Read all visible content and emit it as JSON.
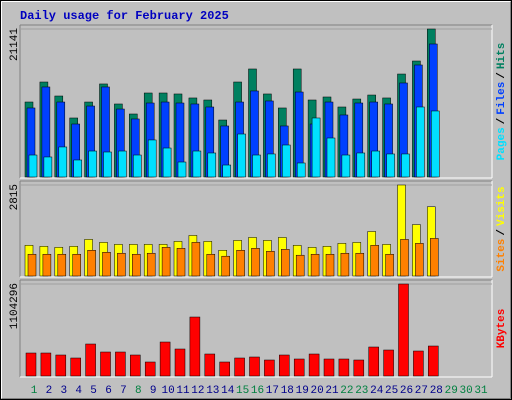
{
  "title": "Daily usage for February 2025",
  "categories": [
    "1",
    "2",
    "3",
    "4",
    "5",
    "6",
    "7",
    "8",
    "9",
    "10",
    "11",
    "12",
    "13",
    "14",
    "15",
    "16",
    "17",
    "18",
    "19",
    "20",
    "21",
    "22",
    "23",
    "24",
    "25",
    "26",
    "27",
    "28",
    "29",
    "30",
    "31"
  ],
  "category_colors": [
    "#008040",
    "#00008b",
    "#00008b",
    "#00008b",
    "#00008b",
    "#00008b",
    "#00008b",
    "#008040",
    "#00008b",
    "#00008b",
    "#00008b",
    "#00008b",
    "#00008b",
    "#00008b",
    "#008040",
    "#008040",
    "#00008b",
    "#00008b",
    "#00008b",
    "#00008b",
    "#00008b",
    "#008040",
    "#008040",
    "#00008b",
    "#00008b",
    "#00008b",
    "#00008b",
    "#00008b",
    "#008040",
    "#008040",
    "#008040"
  ],
  "legend_separator": "/",
  "chart_data": [
    {
      "type": "bar",
      "ylim": [
        0,
        21141
      ],
      "yticks": [
        21141
      ],
      "series": [
        {
          "name": "Hits",
          "color": "#008060",
          "values": [
            10713,
            13570,
            11570,
            8430,
            10710,
            13290,
            10430,
            9000,
            12000,
            12000,
            11860,
            11290,
            11000,
            8140,
            13570,
            15430,
            11860,
            9860,
            15430,
            11000,
            11430,
            10000,
            11140,
            11710,
            11290,
            14710,
            16570,
            21141,
            null,
            null,
            null
          ]
        },
        {
          "name": "Files",
          "color": "#0040ff",
          "values": [
            9860,
            12860,
            10710,
            7570,
            10140,
            12860,
            9710,
            8290,
            10570,
            10710,
            10570,
            10430,
            10000,
            7290,
            10710,
            12290,
            10860,
            7290,
            12140,
            7570,
            10710,
            8860,
            10570,
            10710,
            10430,
            13430,
            16000,
            19000,
            null,
            null,
            null
          ]
        },
        {
          "name": "Pages",
          "color": "#00e0ff",
          "values": [
            3140,
            2860,
            4290,
            2430,
            3710,
            3570,
            3710,
            3140,
            5290,
            4140,
            2140,
            3710,
            3430,
            1710,
            6140,
            3140,
            3290,
            4570,
            2000,
            8430,
            5570,
            3140,
            3430,
            3710,
            3290,
            3290,
            10000,
            9430,
            null,
            null,
            null
          ]
        }
      ]
    },
    {
      "type": "bar",
      "ylim": [
        0,
        2815
      ],
      "yticks": [
        2815
      ],
      "series": [
        {
          "name": "Visits",
          "color": "#ffff00",
          "values": [
            949,
            918,
            887,
            918,
            1132,
            1040,
            979,
            979,
            979,
            979,
            1071,
            1255,
            1071,
            796,
            1102,
            1193,
            1102,
            1193,
            949,
            887,
            918,
            1010,
            1040,
            1377,
            979,
            2815,
            1591,
            2142,
            null,
            null,
            null
          ]
        },
        {
          "name": "Sites",
          "color": "#ff8000",
          "values": [
            673,
            673,
            673,
            673,
            796,
            734,
            704,
            673,
            704,
            887,
            857,
            1040,
            673,
            612,
            796,
            857,
            765,
            826,
            643,
            673,
            673,
            704,
            704,
            949,
            673,
            1132,
            1010,
            1163,
            null,
            null,
            null
          ]
        }
      ]
    },
    {
      "type": "bar",
      "ylim": [
        0,
        1104296
      ],
      "yticks": [
        1104296
      ],
      "series": [
        {
          "name": "KBytes",
          "color": "#ff0000",
          "values": [
            276000,
            276000,
            252000,
            216000,
            384000,
            288000,
            288000,
            252000,
            168000,
            408000,
            324000,
            708000,
            264000,
            168000,
            216000,
            228000,
            192000,
            252000,
            204000,
            264000,
            204000,
            204000,
            192000,
            348000,
            312000,
            1104296,
            300000,
            360000,
            null,
            null,
            null
          ]
        }
      ]
    }
  ]
}
